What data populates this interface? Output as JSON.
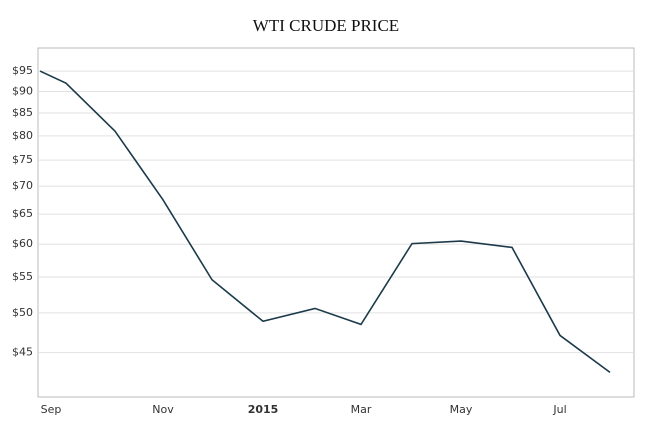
{
  "chart_data": {
    "type": "line",
    "title": "WTI CRUDE PRICE",
    "categories": [
      "Sep",
      null,
      null,
      "Nov",
      null,
      "2015",
      null,
      "Mar",
      null,
      "May",
      null,
      "Jul",
      null
    ],
    "series": [
      {
        "name": "WTI",
        "color": "#1c3a4a",
        "values": [
          95,
          92,
          81,
          67.5,
          54.6,
          48.9,
          50.6,
          48.5,
          60.1,
          60.5,
          59.5,
          47.1,
          42.7
        ]
      }
    ],
    "ylim": [
      40,
      101
    ],
    "log_scale": true,
    "grid": true,
    "yticks": [
      {
        "value": 45,
        "label": "$45"
      },
      {
        "value": 50,
        "label": "$50"
      },
      {
        "value": 55,
        "label": "$55"
      },
      {
        "value": 60,
        "label": "$60"
      },
      {
        "value": 65,
        "label": "$65"
      },
      {
        "value": 70,
        "label": "$70"
      },
      {
        "value": 75,
        "label": "$75"
      },
      {
        "value": 80,
        "label": "$80"
      },
      {
        "value": 85,
        "label": "$85"
      },
      {
        "value": 90,
        "label": "$90"
      },
      {
        "value": 95,
        "label": "$95"
      }
    ]
  }
}
